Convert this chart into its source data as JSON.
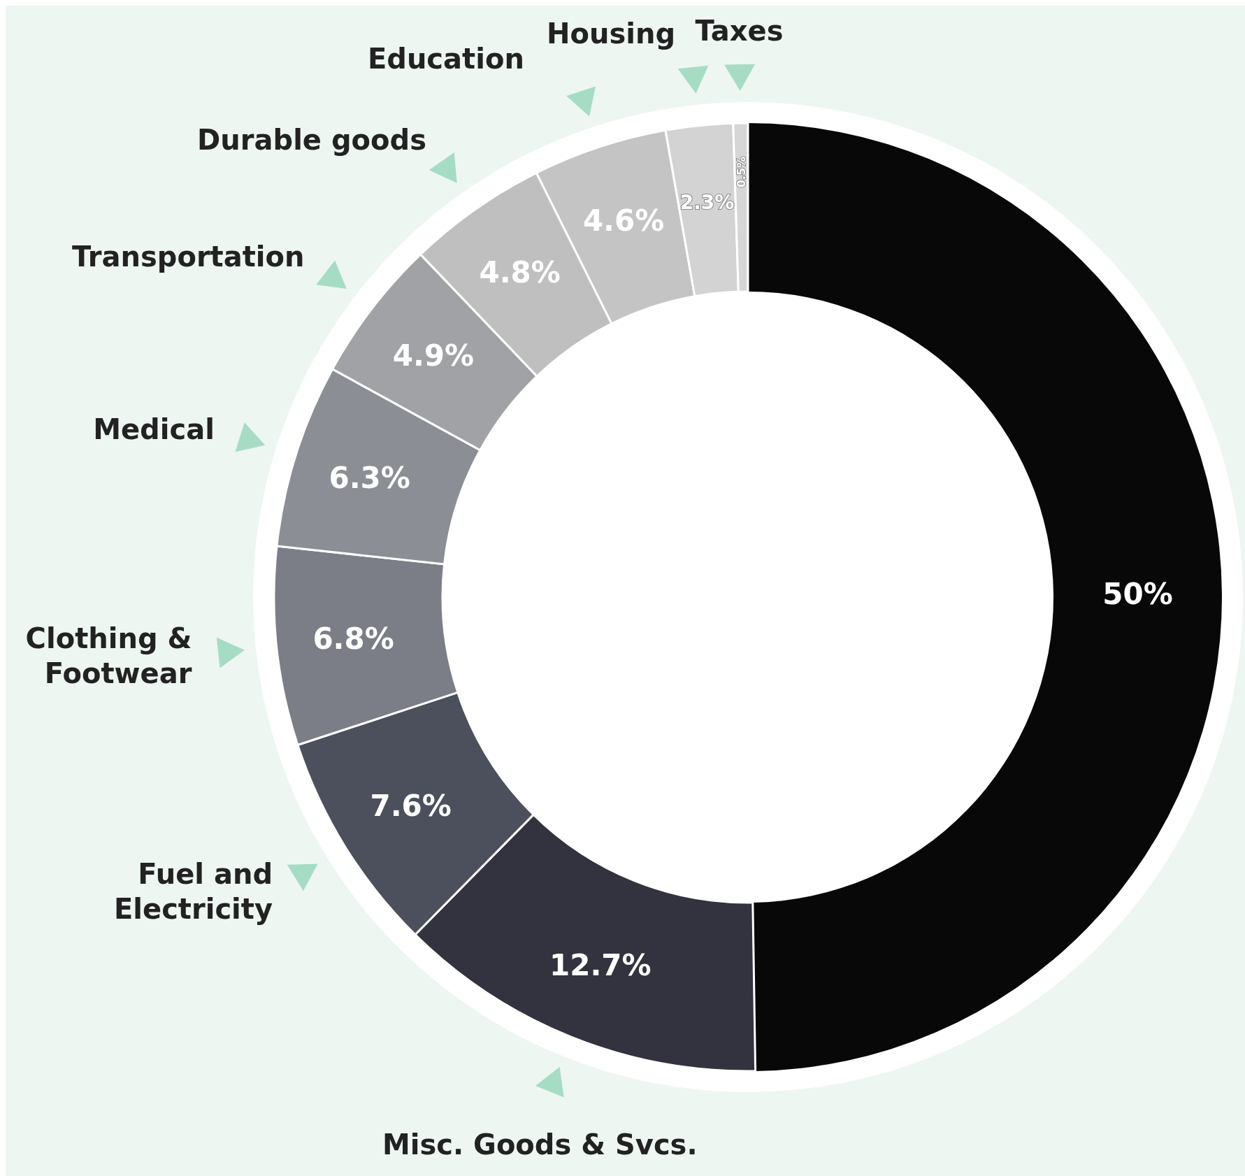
{
  "chart_data": {
    "type": "donut",
    "categories": [
      null,
      "Misc. Goods & Svcs.",
      "Fuel and Electricity",
      "Clothing & Footwear",
      "Medical",
      "Transportation",
      "Durable goods",
      "Education",
      "Housing",
      "Taxes"
    ],
    "values": [
      50,
      12.7,
      7.6,
      6.8,
      6.3,
      4.9,
      4.8,
      4.6,
      2.3,
      0.5
    ],
    "colors": [
      "#080808",
      "#32333f",
      "#4b505c",
      "#7b7e86",
      "#8b8e95",
      "#a0a2a6",
      "#bfbfbf",
      "#c4c4c4",
      "#d3d3d3",
      "#d6d6d6"
    ],
    "value_labels": [
      "50%",
      "12.7%",
      "7.6%",
      "6.8%",
      "6.3%",
      "4.9%",
      "4.8%",
      "4.6%",
      "2.3%",
      "0.5%"
    ]
  }
}
